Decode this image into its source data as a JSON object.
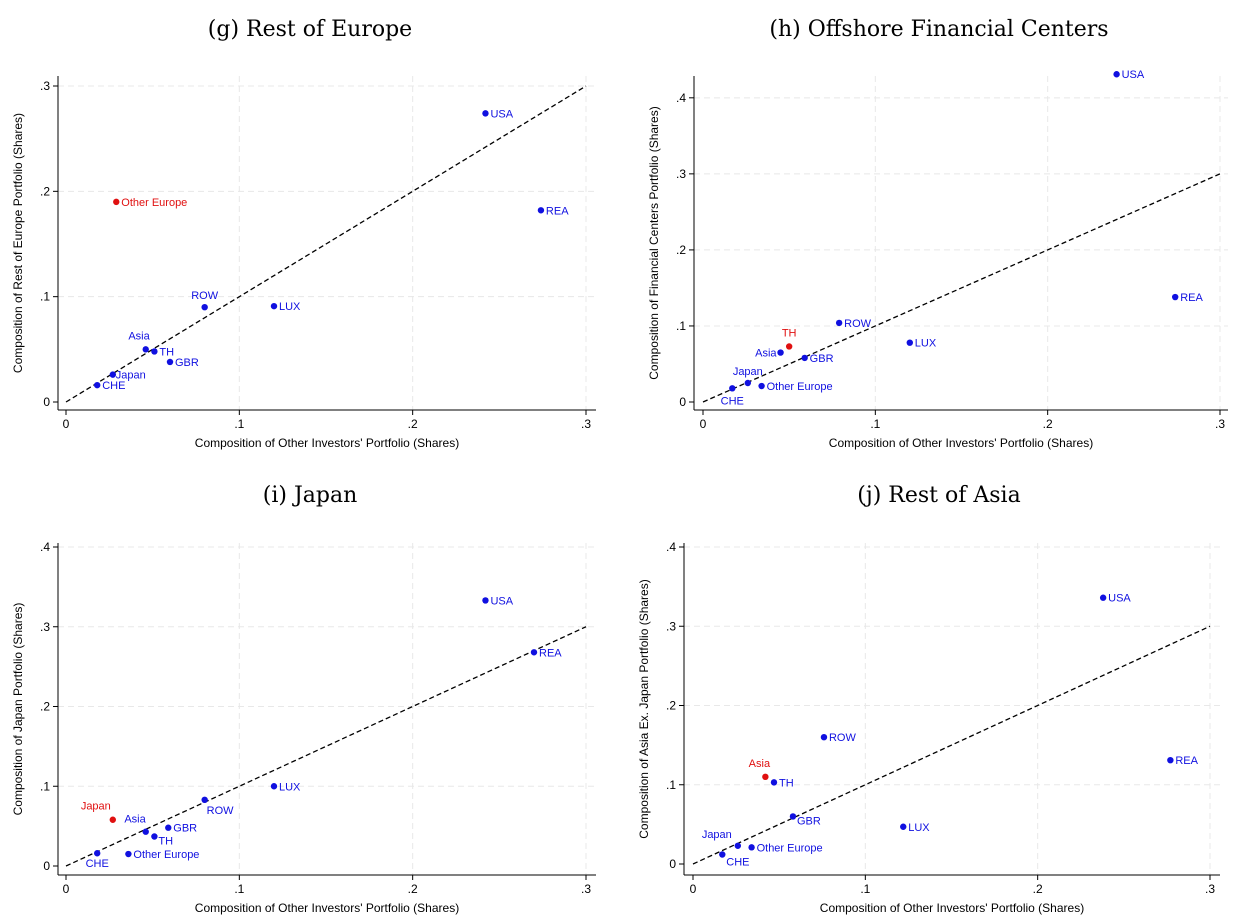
{
  "colors": {
    "point": "#1010e0",
    "highlight": "#e01010",
    "line": "#000000"
  },
  "chart_data": [
    {
      "type": "scatter",
      "title": "(g) Rest of Europe",
      "xlabel": "Composition of Other Investors' Portfolio (Shares)",
      "ylabel": "Composition of Rest of Europe Portfolio (Shares)",
      "xlim": [
        0,
        0.3
      ],
      "ylim": [
        0,
        0.3
      ],
      "x_ticks": [
        0,
        0.1,
        0.2,
        0.3
      ],
      "x_tick_labels": [
        "0",
        ".1",
        ".2",
        ".3"
      ],
      "y_ticks": [
        0,
        0.1,
        0.2,
        0.3
      ],
      "y_tick_labels": [
        "0",
        ".1",
        ".2",
        ".3"
      ],
      "reference_line": "45-degree (y = x), dashed",
      "points": [
        {
          "label": "USA",
          "x": 0.242,
          "y": 0.274,
          "highlight": false
        },
        {
          "label": "Other Europe",
          "x": 0.029,
          "y": 0.19,
          "highlight": true
        },
        {
          "label": "REA",
          "x": 0.274,
          "y": 0.182,
          "highlight": false
        },
        {
          "label": "ROW",
          "x": 0.08,
          "y": 0.09,
          "highlight": false
        },
        {
          "label": "LUX",
          "x": 0.12,
          "y": 0.091,
          "highlight": false
        },
        {
          "label": "Asia",
          "x": 0.046,
          "y": 0.05,
          "highlight": false
        },
        {
          "label": "TH",
          "x": 0.051,
          "y": 0.048,
          "highlight": false
        },
        {
          "label": "GBR",
          "x": 0.06,
          "y": 0.038,
          "highlight": false
        },
        {
          "label": "Japan",
          "x": 0.027,
          "y": 0.026,
          "highlight": false
        },
        {
          "label": "CHE",
          "x": 0.018,
          "y": 0.016,
          "highlight": false
        }
      ]
    },
    {
      "type": "scatter",
      "title": "(h) Offshore Financial Centers",
      "xlabel": "Composition of Other Investors' Portfolio (Shares)",
      "ylabel": "Composition of Financial Centers Portfolio (Shares)",
      "xlim": [
        0,
        0.3
      ],
      "ylim": [
        0,
        0.43
      ],
      "x_ticks": [
        0,
        0.1,
        0.2,
        0.3
      ],
      "x_tick_labels": [
        "0",
        ".1",
        ".2",
        ".3"
      ],
      "y_ticks": [
        0,
        0.1,
        0.2,
        0.3,
        0.4
      ],
      "y_tick_labels": [
        "0",
        ".1",
        ".2",
        ".3",
        ".4"
      ],
      "reference_line": "45-degree (y = x), dashed",
      "points": [
        {
          "label": "USA",
          "x": 0.24,
          "y": 0.431,
          "highlight": false
        },
        {
          "label": "REA",
          "x": 0.274,
          "y": 0.138,
          "highlight": false
        },
        {
          "label": "ROW",
          "x": 0.079,
          "y": 0.104,
          "highlight": false
        },
        {
          "label": "LUX",
          "x": 0.12,
          "y": 0.078,
          "highlight": false
        },
        {
          "label": "TH",
          "x": 0.05,
          "y": 0.073,
          "highlight": true
        },
        {
          "label": "Asia",
          "x": 0.045,
          "y": 0.065,
          "highlight": false
        },
        {
          "label": "GBR",
          "x": 0.059,
          "y": 0.058,
          "highlight": false
        },
        {
          "label": "Japan",
          "x": 0.026,
          "y": 0.025,
          "highlight": false
        },
        {
          "label": "Other Europe",
          "x": 0.034,
          "y": 0.021,
          "highlight": false
        },
        {
          "label": "CHE",
          "x": 0.017,
          "y": 0.018,
          "highlight": false
        }
      ]
    },
    {
      "type": "scatter",
      "title": "(i) Japan",
      "xlabel": "Composition of Other Investors' Portfolio (Shares)",
      "ylabel": "Composition of Japan Portfolio (Shares)",
      "xlim": [
        0,
        0.3
      ],
      "ylim": [
        0,
        0.4
      ],
      "x_ticks": [
        0,
        0.1,
        0.2,
        0.3
      ],
      "x_tick_labels": [
        "0",
        ".1",
        ".2",
        ".3"
      ],
      "y_ticks": [
        0,
        0.1,
        0.2,
        0.3,
        0.4
      ],
      "y_tick_labels": [
        "0",
        ".1",
        ".2",
        ".3",
        ".4"
      ],
      "reference_line": "45-degree (y = x), dashed",
      "points": [
        {
          "label": "USA",
          "x": 0.242,
          "y": 0.333,
          "highlight": false
        },
        {
          "label": "REA",
          "x": 0.27,
          "y": 0.268,
          "highlight": false
        },
        {
          "label": "LUX",
          "x": 0.12,
          "y": 0.1,
          "highlight": false
        },
        {
          "label": "ROW",
          "x": 0.08,
          "y": 0.083,
          "highlight": false
        },
        {
          "label": "Japan",
          "x": 0.027,
          "y": 0.058,
          "highlight": true
        },
        {
          "label": "GBR",
          "x": 0.059,
          "y": 0.048,
          "highlight": false
        },
        {
          "label": "Asia",
          "x": 0.046,
          "y": 0.043,
          "highlight": false
        },
        {
          "label": "TH",
          "x": 0.051,
          "y": 0.037,
          "highlight": false
        },
        {
          "label": "CHE",
          "x": 0.018,
          "y": 0.016,
          "highlight": false
        },
        {
          "label": "Other Europe",
          "x": 0.036,
          "y": 0.015,
          "highlight": false
        }
      ]
    },
    {
      "type": "scatter",
      "title": "(j) Rest of Asia",
      "xlabel": "Composition of Other Investors' Portfolio (Shares)",
      "ylabel": "Composition of Asia Ex. Japan Portfolio (Shares)",
      "xlim": [
        0,
        0.3
      ],
      "ylim": [
        0,
        0.4
      ],
      "x_ticks": [
        0,
        0.1,
        0.2,
        0.3
      ],
      "x_tick_labels": [
        "0",
        ".1",
        ".2",
        ".3"
      ],
      "y_ticks": [
        0,
        0.1,
        0.2,
        0.3,
        0.4
      ],
      "y_tick_labels": [
        "0",
        ".1",
        ".2",
        ".3",
        ".4"
      ],
      "reference_line": "45-degree (y = x), dashed",
      "points": [
        {
          "label": "USA",
          "x": 0.238,
          "y": 0.336,
          "highlight": false
        },
        {
          "label": "ROW",
          "x": 0.076,
          "y": 0.16,
          "highlight": false
        },
        {
          "label": "REA",
          "x": 0.277,
          "y": 0.131,
          "highlight": false
        },
        {
          "label": "Asia",
          "x": 0.042,
          "y": 0.11,
          "highlight": true
        },
        {
          "label": "TH",
          "x": 0.047,
          "y": 0.103,
          "highlight": false
        },
        {
          "label": "GBR",
          "x": 0.058,
          "y": 0.06,
          "highlight": false
        },
        {
          "label": "LUX",
          "x": 0.122,
          "y": 0.047,
          "highlight": false
        },
        {
          "label": "Japan",
          "x": 0.026,
          "y": 0.023,
          "highlight": false
        },
        {
          "label": "Other Europe",
          "x": 0.034,
          "y": 0.021,
          "highlight": false
        },
        {
          "label": "CHE",
          "x": 0.017,
          "y": 0.012,
          "highlight": false
        }
      ]
    }
  ]
}
